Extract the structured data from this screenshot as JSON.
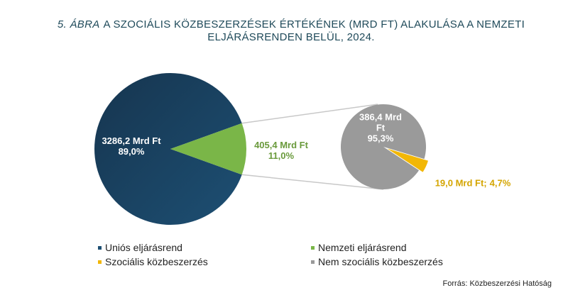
{
  "chart_data": {
    "type": "pie-of-pie",
    "title_prefix": "5. ÁBRA",
    "title": "A SZOCIÁLIS KÖZBESZERZÉSEK ÉRTÉKÉNEK (MRD FT) ALAKULÁSA A NEMZETI ELJÁRÁSRENDEN BELÜL, 2024.",
    "source": "Forrás: Közbeszerzési Hatóság",
    "pies": [
      {
        "categories": [
          "Uniós eljárásrend",
          "Nemzeti eljárásrend"
        ],
        "colors": [
          "#1d4f73",
          "#7ab648"
        ],
        "label_colors": [
          "#ffffff",
          "#6a9a3c"
        ],
        "values": [
          3286.2,
          405.4
        ],
        "value_labels": [
          "3286,2 Mrd Ft",
          "405,4 Mrd Ft"
        ],
        "percents": [
          89.0,
          11.0
        ],
        "percent_labels": [
          "89,0%",
          "11,0%"
        ]
      },
      {
        "categories": [
          "Nem szociális közbeszerzés",
          "Szociális közbeszerzés"
        ],
        "colors": [
          "#9a9a9a",
          "#f2b705"
        ],
        "label_colors": [
          "#ffffff",
          "#d4a500"
        ],
        "values": [
          386.4,
          19.0
        ],
        "value_labels": [
          "386,4 Mrd Ft",
          "19,0 Mrd Ft;"
        ],
        "percents": [
          95.3,
          4.7
        ],
        "percent_labels": [
          "95,3%",
          "4,7%"
        ]
      }
    ]
  }
}
